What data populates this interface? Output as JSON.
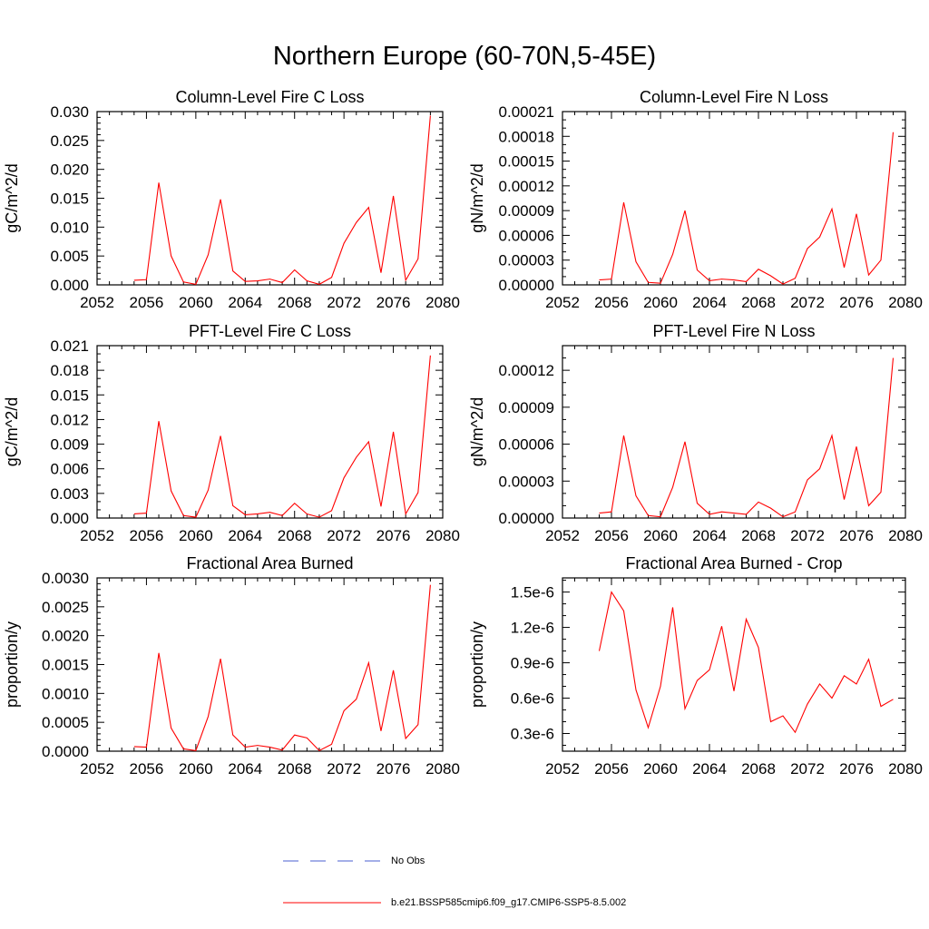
{
  "figure": {
    "title": "Northern Europe (60-70N,5-45E)",
    "legend": [
      {
        "label": "No Obs",
        "color": "#4a5fd0",
        "style": "dashed"
      },
      {
        "label": "b.e21.BSSP585cmip6.f09_g17.CMIP6-SSP5-8.5.002",
        "color": "#ff0000",
        "style": "solid"
      }
    ]
  },
  "chart_data": [
    {
      "type": "line",
      "title": "Column-Level Fire C Loss",
      "ylabel": "gC/m^2/d",
      "xlim": [
        2052,
        2080
      ],
      "ylim": [
        0,
        0.03
      ],
      "xticks": [
        2052,
        2056,
        2060,
        2064,
        2068,
        2072,
        2076,
        2080
      ],
      "yticks": [
        "0.000",
        "0.005",
        "0.010",
        "0.015",
        "0.020",
        "0.025",
        "0.030"
      ],
      "yminor": 5,
      "series": [
        {
          "color": "#ff0000",
          "x": [
            2055,
            2056,
            2057,
            2058,
            2059,
            2060,
            2061,
            2062,
            2063,
            2064,
            2065,
            2066,
            2067,
            2068,
            2069,
            2070,
            2071,
            2072,
            2073,
            2074,
            2075,
            2076,
            2077,
            2078,
            2079
          ],
          "y": [
            0.0008,
            0.0009,
            0.0177,
            0.005,
            0.0005,
            0.0001,
            0.0052,
            0.0148,
            0.0024,
            0.0006,
            0.0007,
            0.001,
            0.0004,
            0.0026,
            0.0007,
            0.0001,
            0.0013,
            0.0072,
            0.0108,
            0.0134,
            0.0021,
            0.0154,
            0.0008,
            0.0045,
            0.0293
          ]
        }
      ]
    },
    {
      "type": "line",
      "title": "Column-Level Fire N Loss",
      "ylabel": "gN/m^2/d",
      "xlim": [
        2052,
        2080
      ],
      "ylim": [
        0,
        0.00021
      ],
      "xticks": [
        2052,
        2056,
        2060,
        2064,
        2068,
        2072,
        2076,
        2080
      ],
      "yticks": [
        "0.00000",
        "0.00003",
        "0.00006",
        "0.00009",
        "0.00012",
        "0.00015",
        "0.00018",
        "0.00021"
      ],
      "yminor": 3,
      "series": [
        {
          "color": "#ff0000",
          "x": [
            2055,
            2056,
            2057,
            2058,
            2059,
            2060,
            2061,
            2062,
            2063,
            2064,
            2065,
            2066,
            2067,
            2068,
            2069,
            2070,
            2071,
            2072,
            2073,
            2074,
            2075,
            2076,
            2077,
            2078,
            2079
          ],
          "y": [
            6e-06,
            7e-06,
            0.0001,
            2.8e-05,
            3e-06,
            2e-06,
            3.7e-05,
            9e-05,
            1.8e-05,
            5e-06,
            7e-06,
            6e-06,
            4e-06,
            1.9e-05,
            1.1e-05,
            1e-06,
            8e-06,
            4.4e-05,
            5.8e-05,
            9.2e-05,
            2.1e-05,
            8.6e-05,
            1.2e-05,
            3e-05,
            0.000185
          ]
        }
      ]
    },
    {
      "type": "line",
      "title": "PFT-Level Fire C Loss",
      "ylabel": "gC/m^2/d",
      "xlim": [
        2052,
        2080
      ],
      "ylim": [
        0,
        0.021
      ],
      "xticks": [
        2052,
        2056,
        2060,
        2064,
        2068,
        2072,
        2076,
        2080
      ],
      "yticks": [
        "0.000",
        "0.003",
        "0.006",
        "0.009",
        "0.012",
        "0.015",
        "0.018",
        "0.021"
      ],
      "yminor": 3,
      "series": [
        {
          "color": "#ff0000",
          "x": [
            2055,
            2056,
            2057,
            2058,
            2059,
            2060,
            2061,
            2062,
            2063,
            2064,
            2065,
            2066,
            2067,
            2068,
            2069,
            2070,
            2071,
            2072,
            2073,
            2074,
            2075,
            2076,
            2077,
            2078,
            2079
          ],
          "y": [
            0.0005,
            0.0006,
            0.0118,
            0.0033,
            0.0003,
            0.0001,
            0.0034,
            0.01,
            0.0015,
            0.0004,
            0.0005,
            0.0007,
            0.0003,
            0.0018,
            0.0005,
            0.0001,
            0.0009,
            0.0049,
            0.0074,
            0.0093,
            0.0014,
            0.0105,
            0.0005,
            0.0031,
            0.0198
          ]
        }
      ]
    },
    {
      "type": "line",
      "title": "PFT-Level Fire N Loss",
      "ylabel": "gN/m^2/d",
      "xlim": [
        2052,
        2080
      ],
      "ylim": [
        0,
        0.00014
      ],
      "xticks": [
        2052,
        2056,
        2060,
        2064,
        2068,
        2072,
        2076,
        2080
      ],
      "yticks": [
        "0.00000",
        "0.00003",
        "0.00006",
        "0.00009",
        "0.00012"
      ],
      "yminor": 3,
      "series": [
        {
          "color": "#ff0000",
          "x": [
            2055,
            2056,
            2057,
            2058,
            2059,
            2060,
            2061,
            2062,
            2063,
            2064,
            2065,
            2066,
            2067,
            2068,
            2069,
            2070,
            2071,
            2072,
            2073,
            2074,
            2075,
            2076,
            2077,
            2078,
            2079
          ],
          "y": [
            4e-06,
            5e-06,
            6.7e-05,
            1.8e-05,
            2e-06,
            1e-06,
            2.5e-05,
            6.2e-05,
            1.2e-05,
            3e-06,
            5e-06,
            4e-06,
            3e-06,
            1.3e-05,
            8e-06,
            1e-06,
            5e-06,
            3.1e-05,
            4e-05,
            6.7e-05,
            1.5e-05,
            5.8e-05,
            1e-05,
            2.1e-05,
            0.00013
          ]
        }
      ]
    },
    {
      "type": "line",
      "title": "Fractional Area Burned",
      "ylabel": "proportion/y",
      "xlim": [
        2052,
        2080
      ],
      "ylim": [
        0,
        0.003
      ],
      "xticks": [
        2052,
        2056,
        2060,
        2064,
        2068,
        2072,
        2076,
        2080
      ],
      "yticks": [
        "0.0000",
        "0.0005",
        "0.0010",
        "0.0015",
        "0.0020",
        "0.0025",
        "0.0030"
      ],
      "yminor": 5,
      "series": [
        {
          "color": "#ff0000",
          "x": [
            2055,
            2056,
            2057,
            2058,
            2059,
            2060,
            2061,
            2062,
            2063,
            2064,
            2065,
            2066,
            2067,
            2068,
            2069,
            2070,
            2071,
            2072,
            2073,
            2074,
            2075,
            2076,
            2077,
            2078,
            2079
          ],
          "y": [
            8e-05,
            7e-05,
            0.0017,
            0.0004,
            4e-05,
            1e-05,
            0.0006,
            0.0016,
            0.00028,
            7e-05,
            0.0001,
            7e-05,
            2e-05,
            0.00028,
            0.00023,
            1e-05,
            0.00012,
            0.0007,
            0.0009,
            0.00153,
            0.00035,
            0.0014,
            0.00022,
            0.00046,
            0.00288
          ]
        }
      ]
    },
    {
      "type": "line",
      "title": "Fractional Area Burned - Crop",
      "ylabel": "proportion/y",
      "xlim": [
        2052,
        2080
      ],
      "ylim": [
        1.5e-07,
        1.62e-06
      ],
      "xticks": [
        2052,
        2056,
        2060,
        2064,
        2068,
        2072,
        2076,
        2080
      ],
      "ytickvals": [
        3e-07,
        6e-07,
        9e-07,
        1.2e-06,
        1.5e-06
      ],
      "yticks": [
        "0.3e-6",
        "0.6e-6",
        "0.9e-6",
        "1.2e-6",
        "1.5e-6"
      ],
      "yminor": 3,
      "series": [
        {
          "color": "#ff0000",
          "x": [
            2055,
            2056,
            2057,
            2058,
            2059,
            2060,
            2061,
            2062,
            2063,
            2064,
            2065,
            2066,
            2067,
            2068,
            2069,
            2070,
            2071,
            2072,
            2073,
            2074,
            2075,
            2076,
            2077,
            2078,
            2079
          ],
          "y": [
            1e-06,
            1.5e-06,
            1.34e-06,
            6.7e-07,
            3.5e-07,
            7e-07,
            1.37e-06,
            5.1e-07,
            7.5e-07,
            8.4e-07,
            1.21e-06,
            6.6e-07,
            1.27e-06,
            1.03e-06,
            4e-07,
            4.5e-07,
            3.1e-07,
            5.5e-07,
            7.2e-07,
            6e-07,
            7.9e-07,
            7.2e-07,
            9.3e-07,
            5.3e-07,
            5.9e-07
          ]
        }
      ]
    }
  ]
}
